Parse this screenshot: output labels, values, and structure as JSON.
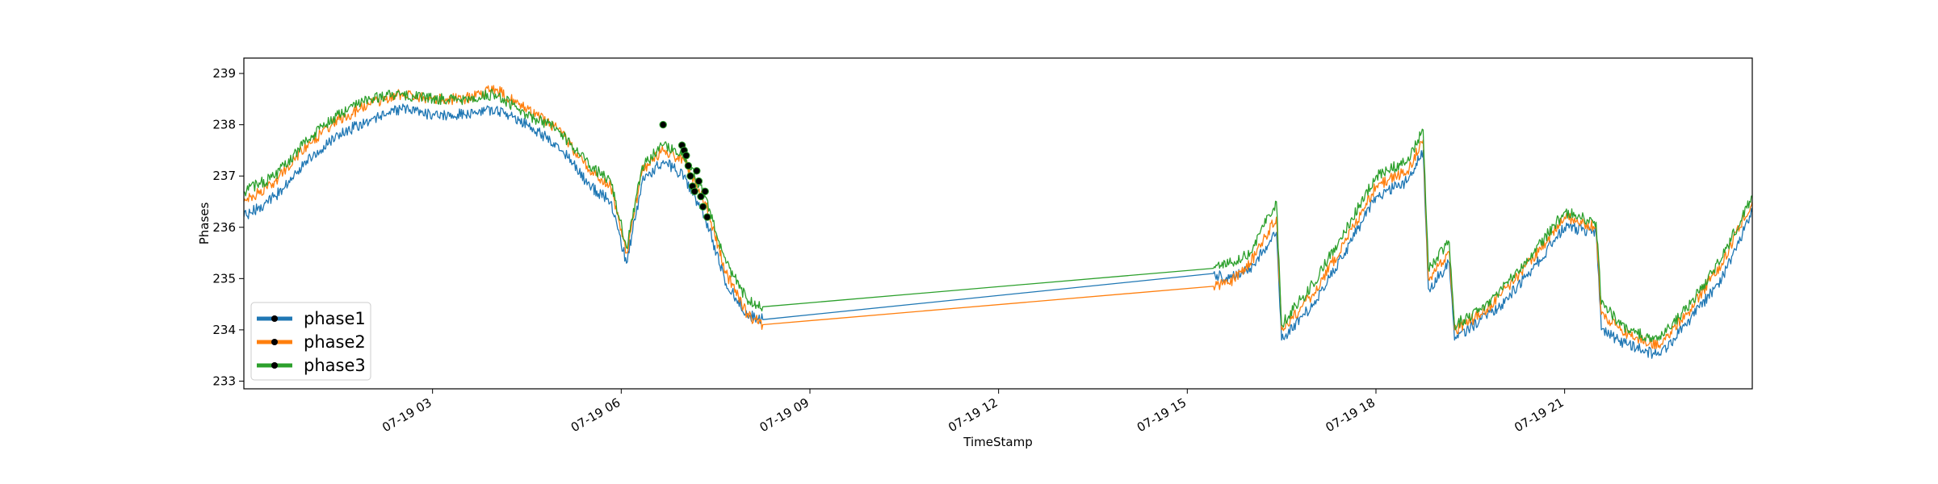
{
  "chart_data": {
    "type": "line",
    "title": "",
    "xlabel": "TimeStamp",
    "ylabel": "Phases",
    "x_range": [
      "2023-07-19T00:00",
      "2023-07-19T23:59"
    ],
    "ylim": [
      232.85,
      239.3
    ],
    "x_ticks": [
      {
        "value": "2023-07-19T03:00",
        "label": "07-19 03"
      },
      {
        "value": "2023-07-19T06:00",
        "label": "07-19 06"
      },
      {
        "value": "2023-07-19T09:00",
        "label": "07-19 09"
      },
      {
        "value": "2023-07-19T12:00",
        "label": "07-19 12"
      },
      {
        "value": "2023-07-19T15:00",
        "label": "07-19 15"
      },
      {
        "value": "2023-07-19T18:00",
        "label": "07-19 18"
      },
      {
        "value": "2023-07-19T21:00",
        "label": "07-19 21"
      }
    ],
    "y_ticks": [
      233,
      234,
      235,
      236,
      237,
      238,
      239
    ],
    "grid": false,
    "legend_position": "lower-left",
    "series": [
      {
        "name": "phase1",
        "color": "#1f77b4",
        "points": [
          [
            "2023-07-19T00:00",
            236.2
          ],
          [
            "2023-07-19T00:30",
            236.6
          ],
          [
            "2023-07-19T01:00",
            237.3
          ],
          [
            "2023-07-19T01:30",
            237.8
          ],
          [
            "2023-07-19T02:00",
            238.1
          ],
          [
            "2023-07-19T02:30",
            238.3
          ],
          [
            "2023-07-19T03:00",
            238.2
          ],
          [
            "2023-07-19T03:30",
            238.2
          ],
          [
            "2023-07-19T04:00",
            238.3
          ],
          [
            "2023-07-19T04:30",
            238.0
          ],
          [
            "2023-07-19T05:00",
            237.6
          ],
          [
            "2023-07-19T05:30",
            236.8
          ],
          [
            "2023-07-19T05:50",
            236.5
          ],
          [
            "2023-07-19T06:05",
            235.3
          ],
          [
            "2023-07-19T06:20",
            236.9
          ],
          [
            "2023-07-19T06:40",
            237.3
          ],
          [
            "2023-07-19T07:00",
            237.0
          ],
          [
            "2023-07-19T07:20",
            236.2
          ],
          [
            "2023-07-19T07:40",
            234.9
          ],
          [
            "2023-07-19T08:00",
            234.3
          ],
          [
            "2023-07-19T08:15",
            234.2
          ],
          [
            "2023-07-19T15:25",
            235.1
          ],
          [
            "2023-07-19T15:40",
            235.0
          ],
          [
            "2023-07-19T16:00",
            235.2
          ],
          [
            "2023-07-19T16:25",
            235.9
          ],
          [
            "2023-07-19T16:30",
            233.8
          ],
          [
            "2023-07-19T17:00",
            234.5
          ],
          [
            "2023-07-19T17:30",
            235.5
          ],
          [
            "2023-07-19T18:00",
            236.6
          ],
          [
            "2023-07-19T18:30",
            236.9
          ],
          [
            "2023-07-19T18:45",
            237.5
          ],
          [
            "2023-07-19T18:50",
            234.8
          ],
          [
            "2023-07-19T19:10",
            235.3
          ],
          [
            "2023-07-19T19:15",
            233.8
          ],
          [
            "2023-07-19T19:40",
            234.2
          ],
          [
            "2023-07-19T20:00",
            234.5
          ],
          [
            "2023-07-19T20:30",
            235.2
          ],
          [
            "2023-07-19T21:00",
            236.0
          ],
          [
            "2023-07-19T21:30",
            235.9
          ],
          [
            "2023-07-19T21:35",
            234.0
          ],
          [
            "2023-07-19T22:00",
            233.7
          ],
          [
            "2023-07-19T22:30",
            233.5
          ],
          [
            "2023-07-19T23:00",
            234.2
          ],
          [
            "2023-07-19T23:30",
            235.0
          ],
          [
            "2023-07-19T23:59",
            236.3
          ]
        ]
      },
      {
        "name": "phase2",
        "color": "#ff7f0e",
        "points": [
          [
            "2023-07-19T00:00",
            236.5
          ],
          [
            "2023-07-19T00:30",
            236.9
          ],
          [
            "2023-07-19T01:00",
            237.6
          ],
          [
            "2023-07-19T01:30",
            238.1
          ],
          [
            "2023-07-19T02:00",
            238.4
          ],
          [
            "2023-07-19T02:30",
            238.6
          ],
          [
            "2023-07-19T03:00",
            238.5
          ],
          [
            "2023-07-19T03:30",
            238.5
          ],
          [
            "2023-07-19T04:00",
            238.7
          ],
          [
            "2023-07-19T04:30",
            238.3
          ],
          [
            "2023-07-19T05:00",
            237.9
          ],
          [
            "2023-07-19T05:30",
            237.1
          ],
          [
            "2023-07-19T05:50",
            236.8
          ],
          [
            "2023-07-19T06:05",
            235.5
          ],
          [
            "2023-07-19T06:20",
            237.1
          ],
          [
            "2023-07-19T06:40",
            237.5
          ],
          [
            "2023-07-19T07:00",
            237.3
          ],
          [
            "2023-07-19T07:20",
            236.5
          ],
          [
            "2023-07-19T07:40",
            235.1
          ],
          [
            "2023-07-19T08:00",
            234.3
          ],
          [
            "2023-07-19T08:15",
            234.1
          ],
          [
            "2023-07-19T15:25",
            234.85
          ],
          [
            "2023-07-19T15:40",
            234.9
          ],
          [
            "2023-07-19T16:00",
            235.3
          ],
          [
            "2023-07-19T16:25",
            236.2
          ],
          [
            "2023-07-19T16:30",
            234.0
          ],
          [
            "2023-07-19T17:00",
            234.7
          ],
          [
            "2023-07-19T17:30",
            235.7
          ],
          [
            "2023-07-19T18:00",
            236.8
          ],
          [
            "2023-07-19T18:30",
            237.1
          ],
          [
            "2023-07-19T18:45",
            237.7
          ],
          [
            "2023-07-19T18:50",
            235.0
          ],
          [
            "2023-07-19T19:10",
            235.5
          ],
          [
            "2023-07-19T19:15",
            234.0
          ],
          [
            "2023-07-19T19:40",
            234.3
          ],
          [
            "2023-07-19T20:00",
            234.7
          ],
          [
            "2023-07-19T20:30",
            235.4
          ],
          [
            "2023-07-19T21:00",
            236.2
          ],
          [
            "2023-07-19T21:30",
            236.0
          ],
          [
            "2023-07-19T21:35",
            234.3
          ],
          [
            "2023-07-19T22:00",
            233.9
          ],
          [
            "2023-07-19T22:30",
            233.7
          ],
          [
            "2023-07-19T23:00",
            234.4
          ],
          [
            "2023-07-19T23:30",
            235.3
          ],
          [
            "2023-07-19T23:59",
            236.5
          ]
        ]
      },
      {
        "name": "phase3",
        "color": "#2ca02c",
        "points": [
          [
            "2023-07-19T00:00",
            236.7
          ],
          [
            "2023-07-19T00:30",
            237.0
          ],
          [
            "2023-07-19T01:00",
            237.7
          ],
          [
            "2023-07-19T01:30",
            238.2
          ],
          [
            "2023-07-19T02:00",
            238.5
          ],
          [
            "2023-07-19T02:30",
            238.6
          ],
          [
            "2023-07-19T03:00",
            238.5
          ],
          [
            "2023-07-19T03:30",
            238.5
          ],
          [
            "2023-07-19T04:00",
            238.6
          ],
          [
            "2023-07-19T04:30",
            238.2
          ],
          [
            "2023-07-19T05:00",
            237.9
          ],
          [
            "2023-07-19T05:30",
            237.2
          ],
          [
            "2023-07-19T05:50",
            236.9
          ],
          [
            "2023-07-19T06:05",
            235.6
          ],
          [
            "2023-07-19T06:20",
            237.2
          ],
          [
            "2023-07-19T06:40",
            237.6
          ],
          [
            "2023-07-19T07:00",
            237.4
          ],
          [
            "2023-07-19T07:20",
            236.6
          ],
          [
            "2023-07-19T07:40",
            235.3
          ],
          [
            "2023-07-19T08:00",
            234.6
          ],
          [
            "2023-07-19T08:15",
            234.45
          ],
          [
            "2023-07-19T15:25",
            235.2
          ],
          [
            "2023-07-19T15:40",
            235.3
          ],
          [
            "2023-07-19T16:00",
            235.5
          ],
          [
            "2023-07-19T16:25",
            236.5
          ],
          [
            "2023-07-19T16:30",
            234.1
          ],
          [
            "2023-07-19T17:00",
            234.9
          ],
          [
            "2023-07-19T17:30",
            235.9
          ],
          [
            "2023-07-19T18:00",
            237.0
          ],
          [
            "2023-07-19T18:30",
            237.3
          ],
          [
            "2023-07-19T18:45",
            237.9
          ],
          [
            "2023-07-19T18:50",
            235.2
          ],
          [
            "2023-07-19T19:10",
            235.7
          ],
          [
            "2023-07-19T19:15",
            234.1
          ],
          [
            "2023-07-19T19:40",
            234.4
          ],
          [
            "2023-07-19T20:00",
            234.8
          ],
          [
            "2023-07-19T20:30",
            235.5
          ],
          [
            "2023-07-19T21:00",
            236.3
          ],
          [
            "2023-07-19T21:30",
            236.1
          ],
          [
            "2023-07-19T21:35",
            234.5
          ],
          [
            "2023-07-19T22:00",
            234.0
          ],
          [
            "2023-07-19T22:30",
            233.8
          ],
          [
            "2023-07-19T23:00",
            234.5
          ],
          [
            "2023-07-19T23:30",
            235.4
          ],
          [
            "2023-07-19T23:59",
            236.6
          ]
        ]
      }
    ],
    "markers": {
      "color": "#000000",
      "points": [
        [
          "2023-07-19T06:40",
          238.0
        ],
        [
          "2023-07-19T06:58",
          237.6
        ],
        [
          "2023-07-19T07:00",
          237.5
        ],
        [
          "2023-07-19T07:02",
          237.4
        ],
        [
          "2023-07-19T07:04",
          237.2
        ],
        [
          "2023-07-19T07:06",
          237.0
        ],
        [
          "2023-07-19T07:08",
          236.8
        ],
        [
          "2023-07-19T07:10",
          236.7
        ],
        [
          "2023-07-19T07:12",
          237.1
        ],
        [
          "2023-07-19T07:14",
          236.9
        ],
        [
          "2023-07-19T07:16",
          236.6
        ],
        [
          "2023-07-19T07:18",
          236.4
        ],
        [
          "2023-07-19T07:20",
          236.7
        ],
        [
          "2023-07-19T07:22",
          236.2
        ]
      ]
    }
  },
  "legend": {
    "entries": [
      {
        "label": "phase1",
        "color": "#1f77b4"
      },
      {
        "label": "phase2",
        "color": "#ff7f0e"
      },
      {
        "label": "phase3",
        "color": "#2ca02c"
      }
    ]
  }
}
